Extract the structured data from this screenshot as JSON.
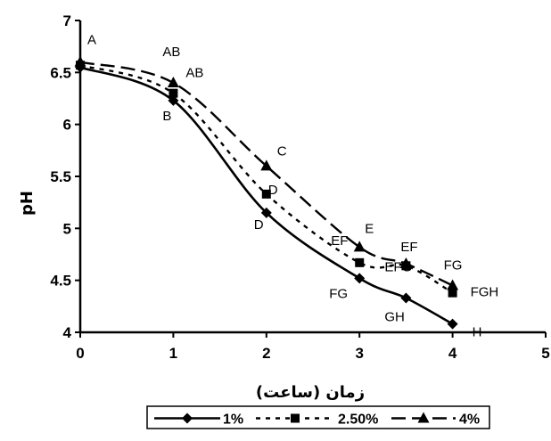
{
  "chart_data": {
    "type": "line",
    "title": "",
    "xlabel": "زمان (ساعت)",
    "ylabel": "pH",
    "xlim": [
      0,
      5
    ],
    "ylim": [
      4,
      7
    ],
    "x_ticks": [
      "0",
      "1",
      "2",
      "3",
      "4",
      "5"
    ],
    "y_ticks": [
      "4",
      "4.5",
      "5",
      "5.5",
      "6",
      "6.5",
      "7"
    ],
    "grid": false,
    "legend_position": "bottom",
    "series": [
      {
        "name": "1%",
        "color": "#000000",
        "line_style": "solid",
        "marker": "diamond",
        "points": [
          {
            "x": 0,
            "y": 6.55,
            "label": "A"
          },
          {
            "x": 1,
            "y": 6.23,
            "label": "B"
          },
          {
            "x": 2,
            "y": 5.15,
            "label": "D"
          },
          {
            "x": 3,
            "y": 4.52,
            "label": "FG"
          },
          {
            "x": 3.5,
            "y": 4.33,
            "label": "GH"
          },
          {
            "x": 4,
            "y": 4.08,
            "label": "H"
          }
        ]
      },
      {
        "name": "2.50%",
        "color": "#000000",
        "line_style": "dotted",
        "marker": "square",
        "points": [
          {
            "x": 0,
            "y": 6.57,
            "label": ""
          },
          {
            "x": 1,
            "y": 6.3,
            "label": "AB"
          },
          {
            "x": 2,
            "y": 5.33,
            "label": "D"
          },
          {
            "x": 3,
            "y": 4.67,
            "label": "EF"
          },
          {
            "x": 3.5,
            "y": 4.64,
            "label": "EFG"
          },
          {
            "x": 4,
            "y": 4.38,
            "label": "FGH"
          }
        ]
      },
      {
        "name": "4%",
        "color": "#000000",
        "line_style": "dashed",
        "marker": "triangle",
        "points": [
          {
            "x": 0,
            "y": 6.6,
            "label": ""
          },
          {
            "x": 1,
            "y": 6.4,
            "label": "AB"
          },
          {
            "x": 2,
            "y": 5.6,
            "label": "C"
          },
          {
            "x": 3,
            "y": 4.82,
            "label": "E"
          },
          {
            "x": 3.5,
            "y": 4.66,
            "label": "EF"
          },
          {
            "x": 4,
            "y": 4.45,
            "label": "FG"
          }
        ]
      }
    ]
  }
}
